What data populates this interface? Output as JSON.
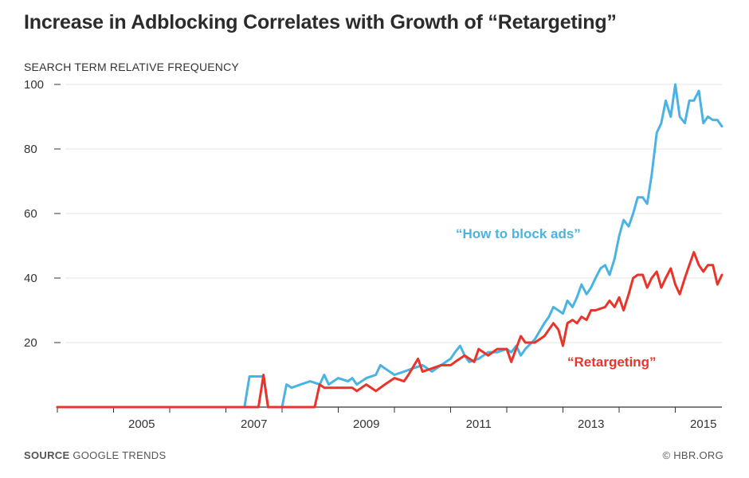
{
  "header": {
    "title": "Increase in Adblocking Correlates with Growth of “Retargeting”"
  },
  "footer": {
    "source_head": "SOURCE",
    "source_text": "GOOGLE TRENDS",
    "credit": "© HBR.ORG"
  },
  "colors": {
    "block_ads": "#4bb3e3",
    "retargeting": "#e8342a",
    "grid": "#e4e4e4",
    "axis": "#333333"
  },
  "chart_data": {
    "type": "line",
    "title": "Increase in Adblocking Correlates with Growth of “Retargeting”",
    "ylabel": "SEARCH TERM RELATIVE FREQUENCY",
    "xlabel": "",
    "xlim": [
      2004.0,
      2015.83
    ],
    "ylim": [
      0,
      100
    ],
    "yticks": [
      20,
      40,
      60,
      80,
      100
    ],
    "yticklabels": [
      "20",
      "40",
      "60",
      "80",
      "100"
    ],
    "xticks": [
      2005,
      2007,
      2009,
      2011,
      2013,
      2015
    ],
    "xticklabels": [
      "2005",
      "2007",
      "2009",
      "2011",
      "2013",
      "2015"
    ],
    "grid": "horizontal",
    "annotations": [
      "“How to block ads”",
      "“Retargeting”"
    ],
    "series": [
      {
        "name": "“How to block ads”",
        "color": "#4bb3e3",
        "points": [
          [
            2004.0,
            0
          ],
          [
            2007.33,
            0
          ],
          [
            2007.42,
            9.5
          ],
          [
            2007.67,
            9.5
          ],
          [
            2007.75,
            0
          ],
          [
            2008.0,
            0
          ],
          [
            2008.08,
            7
          ],
          [
            2008.17,
            6
          ],
          [
            2008.33,
            7
          ],
          [
            2008.5,
            8
          ],
          [
            2008.67,
            7
          ],
          [
            2008.75,
            10
          ],
          [
            2008.83,
            7
          ],
          [
            2009.0,
            9
          ],
          [
            2009.17,
            8
          ],
          [
            2009.25,
            9
          ],
          [
            2009.33,
            7
          ],
          [
            2009.5,
            9
          ],
          [
            2009.67,
            10
          ],
          [
            2009.75,
            13
          ],
          [
            2009.83,
            12
          ],
          [
            2010.0,
            10
          ],
          [
            2010.17,
            11
          ],
          [
            2010.33,
            12
          ],
          [
            2010.5,
            13
          ],
          [
            2010.67,
            11
          ],
          [
            2010.83,
            13
          ],
          [
            2011.0,
            15
          ],
          [
            2011.08,
            17
          ],
          [
            2011.17,
            19
          ],
          [
            2011.25,
            16
          ],
          [
            2011.33,
            14
          ],
          [
            2011.5,
            15
          ],
          [
            2011.67,
            17
          ],
          [
            2011.83,
            17
          ],
          [
            2012.0,
            18
          ],
          [
            2012.08,
            17
          ],
          [
            2012.17,
            19
          ],
          [
            2012.25,
            16
          ],
          [
            2012.33,
            18
          ],
          [
            2012.5,
            21
          ],
          [
            2012.67,
            26
          ],
          [
            2012.75,
            28
          ],
          [
            2012.83,
            31
          ],
          [
            2013.0,
            29
          ],
          [
            2013.08,
            33
          ],
          [
            2013.17,
            31
          ],
          [
            2013.25,
            34
          ],
          [
            2013.33,
            38
          ],
          [
            2013.42,
            35
          ],
          [
            2013.5,
            37
          ],
          [
            2013.58,
            40
          ],
          [
            2013.67,
            43
          ],
          [
            2013.75,
            44
          ],
          [
            2013.83,
            41
          ],
          [
            2013.92,
            46
          ],
          [
            2014.0,
            53
          ],
          [
            2014.08,
            58
          ],
          [
            2014.17,
            56
          ],
          [
            2014.25,
            60
          ],
          [
            2014.33,
            65
          ],
          [
            2014.42,
            65
          ],
          [
            2014.5,
            63
          ],
          [
            2014.58,
            72
          ],
          [
            2014.67,
            85
          ],
          [
            2014.75,
            88
          ],
          [
            2014.83,
            95
          ],
          [
            2014.92,
            90
          ],
          [
            2015.0,
            100
          ],
          [
            2015.08,
            90
          ],
          [
            2015.17,
            88
          ],
          [
            2015.25,
            95
          ],
          [
            2015.33,
            95
          ],
          [
            2015.42,
            98
          ],
          [
            2015.5,
            88
          ],
          [
            2015.58,
            90
          ],
          [
            2015.67,
            89
          ],
          [
            2015.75,
            89
          ],
          [
            2015.83,
            87
          ]
        ]
      },
      {
        "name": "“Retargeting”",
        "color": "#e8342a",
        "points": [
          [
            2004.0,
            0
          ],
          [
            2007.58,
            0
          ],
          [
            2007.67,
            10
          ],
          [
            2007.75,
            0
          ],
          [
            2008.58,
            0
          ],
          [
            2008.67,
            7
          ],
          [
            2008.75,
            6
          ],
          [
            2009.0,
            6
          ],
          [
            2009.25,
            6
          ],
          [
            2009.33,
            5
          ],
          [
            2009.5,
            7
          ],
          [
            2009.67,
            5
          ],
          [
            2009.83,
            7
          ],
          [
            2010.0,
            9
          ],
          [
            2010.17,
            8
          ],
          [
            2010.25,
            10
          ],
          [
            2010.42,
            15
          ],
          [
            2010.5,
            11
          ],
          [
            2010.67,
            12
          ],
          [
            2010.83,
            13
          ],
          [
            2011.0,
            13
          ],
          [
            2011.08,
            14
          ],
          [
            2011.25,
            16
          ],
          [
            2011.42,
            14
          ],
          [
            2011.5,
            18
          ],
          [
            2011.67,
            16
          ],
          [
            2011.83,
            18
          ],
          [
            2012.0,
            18
          ],
          [
            2012.08,
            14
          ],
          [
            2012.25,
            22
          ],
          [
            2012.33,
            20
          ],
          [
            2012.5,
            20
          ],
          [
            2012.67,
            22
          ],
          [
            2012.83,
            26
          ],
          [
            2012.92,
            24
          ],
          [
            2013.0,
            19
          ],
          [
            2013.08,
            26
          ],
          [
            2013.17,
            27
          ],
          [
            2013.25,
            26
          ],
          [
            2013.33,
            28
          ],
          [
            2013.42,
            27
          ],
          [
            2013.5,
            30
          ],
          [
            2013.58,
            30
          ],
          [
            2013.75,
            31
          ],
          [
            2013.83,
            33
          ],
          [
            2013.92,
            31
          ],
          [
            2014.0,
            34
          ],
          [
            2014.08,
            30
          ],
          [
            2014.17,
            35
          ],
          [
            2014.25,
            40
          ],
          [
            2014.33,
            41
          ],
          [
            2014.42,
            41
          ],
          [
            2014.5,
            37
          ],
          [
            2014.58,
            40
          ],
          [
            2014.67,
            42
          ],
          [
            2014.75,
            37
          ],
          [
            2014.83,
            40
          ],
          [
            2014.92,
            43
          ],
          [
            2015.0,
            38
          ],
          [
            2015.08,
            35
          ],
          [
            2015.17,
            40
          ],
          [
            2015.25,
            44
          ],
          [
            2015.33,
            48
          ],
          [
            2015.42,
            44
          ],
          [
            2015.5,
            42
          ],
          [
            2015.58,
            44
          ],
          [
            2015.67,
            44
          ],
          [
            2015.75,
            38
          ],
          [
            2015.83,
            41
          ]
        ]
      }
    ]
  }
}
